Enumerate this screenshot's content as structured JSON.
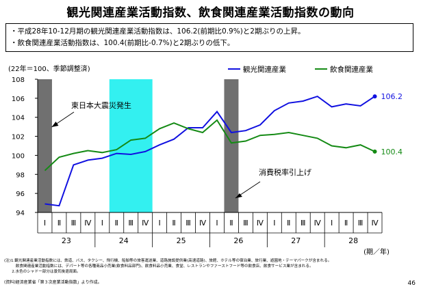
{
  "page": {
    "title": "観光関連産業活動指数、飲食関連産業活動指数の動向",
    "bullets": [
      "・平成28年10-12月期の観光関連産業活動指数は、106.2(前期比0.9%)と2期ぶりの上昇。",
      "・飲食関連産業活動指数は、100.4(前期比-0.7%)と2期ぶりの低下。"
    ],
    "notes": [
      "(注)1.観光関連産業活動指数には、鉄道、バス、タクシー、飛行機、船舶等の旅客運送業、道路施設提供業(高速道路)、旅館、ホテル等の宿泊業、旅行業、遊園地・テーマパークが含まれる。",
      "　　　飲食関連産業活動指数には、デパート等の各種商品小売業(飲食料品部門)、飲食料品小売業、食堂、レストランやファーストフード等の飲食店、飲食サービス業が含まれる。",
      "　　2.水色のシャドー部分は景気後退局面。"
    ],
    "source": "(資料)経済産業省「第３次産業活動指数」より作成。",
    "page_number": "46"
  },
  "chart_data": {
    "type": "line",
    "unit_label": "(22年＝100、季節調整済)",
    "x_quarters": [
      "Ⅰ",
      "Ⅱ",
      "Ⅲ",
      "Ⅳ",
      "Ⅰ",
      "Ⅱ",
      "Ⅲ",
      "Ⅳ",
      "Ⅰ",
      "Ⅱ",
      "Ⅲ",
      "Ⅳ",
      "Ⅰ",
      "Ⅱ",
      "Ⅲ",
      "Ⅳ",
      "Ⅰ",
      "Ⅱ",
      "Ⅲ",
      "Ⅳ",
      "Ⅰ",
      "Ⅱ",
      "Ⅲ",
      "Ⅳ"
    ],
    "year_groups": [
      {
        "label": "23",
        "start": 0,
        "count": 4
      },
      {
        "label": "24",
        "start": 4,
        "count": 4
      },
      {
        "label": "25",
        "start": 8,
        "count": 4
      },
      {
        "label": "26",
        "start": 12,
        "count": 4
      },
      {
        "label": "27",
        "start": 16,
        "count": 4
      },
      {
        "label": "28",
        "start": 20,
        "count": 4
      }
    ],
    "x_unit_label": "(期／年)",
    "ylim": [
      94,
      108
    ],
    "yticks": [
      94,
      96,
      98,
      100,
      102,
      104,
      106,
      108
    ],
    "series": [
      {
        "name": "観光関連産業",
        "color": "#1010e0",
        "values": [
          94.9,
          94.7,
          99.0,
          99.5,
          99.7,
          100.2,
          100.1,
          100.4,
          101.1,
          101.7,
          102.9,
          102.9,
          104.6,
          102.4,
          102.6,
          103.2,
          104.7,
          105.5,
          105.7,
          106.2,
          105.1,
          105.4,
          105.2,
          106.2
        ],
        "end_label": "106.2"
      },
      {
        "name": "飲食関連産業",
        "color": "#148a14",
        "values": [
          98.4,
          99.8,
          100.2,
          100.5,
          100.3,
          100.6,
          101.6,
          101.8,
          102.8,
          103.4,
          102.8,
          102.4,
          103.7,
          101.3,
          101.5,
          102.1,
          102.2,
          102.4,
          102.1,
          101.8,
          101.0,
          100.8,
          101.1,
          100.4
        ],
        "end_label": "100.4"
      }
    ],
    "shading": [
      {
        "type": "event",
        "from": 0,
        "to": 1,
        "color": "#707070"
      },
      {
        "type": "recession",
        "from": 5,
        "to": 8,
        "color": "#33f0f0"
      },
      {
        "type": "event",
        "from": 13,
        "to": 14,
        "color": "#707070"
      }
    ],
    "annotations": [
      {
        "text": "東日本大震災発生",
        "target_index": 0
      },
      {
        "text": "消費税率引上げ",
        "target_index": 13
      }
    ],
    "grid": false,
    "legend": "top-right"
  }
}
